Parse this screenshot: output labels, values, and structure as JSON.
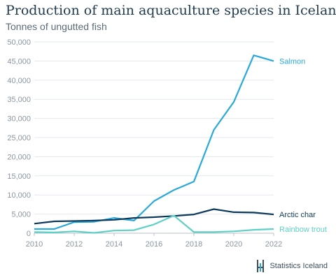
{
  "header": {
    "title": "Production of main aquaculture species in Iceland",
    "subtitle": "Tonnes of ungutted fish"
  },
  "footer": {
    "source": "Statistics Iceland"
  },
  "chart_data": {
    "type": "line",
    "title": "Production of main aquaculture species in Iceland",
    "subtitle": "Tonnes of ungutted fish",
    "x": [
      2010,
      2011,
      2012,
      2013,
      2014,
      2015,
      2016,
      2017,
      2018,
      2019,
      2020,
      2021,
      2022
    ],
    "xlim": [
      2010,
      2022
    ],
    "ylim": [
      0,
      50000
    ],
    "x_ticks": [
      2010,
      2012,
      2014,
      2016,
      2018,
      2020,
      2022
    ],
    "y_ticks": [
      0,
      5000,
      10000,
      15000,
      20000,
      25000,
      30000,
      35000,
      40000,
      45000,
      50000
    ],
    "x_tick_labels": [
      "2010",
      "2012",
      "2014",
      "2016",
      "2018",
      "2020",
      "2022"
    ],
    "y_tick_labels": [
      "0",
      "5,000",
      "10,000",
      "15,000",
      "20,000",
      "25,000",
      "30,000",
      "35,000",
      "40,000",
      "45,000",
      "50,000"
    ],
    "grid": true,
    "legend": "labels at line ends",
    "series": [
      {
        "name": "Salmon",
        "color": "#29a9d9",
        "values": [
          1100,
          1100,
          2900,
          3000,
          4000,
          3300,
          8400,
          11300,
          13500,
          27000,
          34300,
          46500,
          45000
        ]
      },
      {
        "name": "Arctic char",
        "color": "#0d3a5c",
        "values": [
          2500,
          3100,
          3200,
          3300,
          3500,
          4000,
          4200,
          4500,
          4900,
          6300,
          5500,
          5400,
          4900
        ]
      },
      {
        "name": "Rainbow trout",
        "color": "#5fd0c6",
        "values": [
          300,
          200,
          500,
          100,
          700,
          800,
          2300,
          4600,
          300,
          300,
          500,
          900,
          1100
        ]
      }
    ]
  }
}
